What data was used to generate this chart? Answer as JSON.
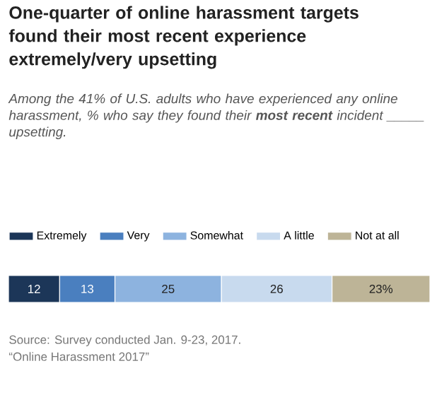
{
  "chart_data": {
    "type": "bar",
    "orientation": "horizontal",
    "stacked": true,
    "legend": "top",
    "title": "One-quarter of online harassment targets found their most recent experience extremely/very upsetting",
    "subtitle": "Among the 41% of U.S. adults who have experienced any online harassment, % who say they found their **most recent** incident _____ upsetting.",
    "categories": [
      null
    ],
    "series": [
      {
        "name": "Extremely",
        "color": "#1c3658",
        "values": [
          12
        ],
        "value_labels": [
          "12"
        ]
      },
      {
        "name": "Very",
        "color": "#4a7fbf",
        "values": [
          13
        ],
        "value_labels": [
          "13"
        ]
      },
      {
        "name": "Somewhat",
        "color": "#8db3df",
        "values": [
          25
        ],
        "value_labels": [
          "25"
        ]
      },
      {
        "name": "A little",
        "color": "#c8daee",
        "values": [
          26
        ],
        "value_labels": [
          "26"
        ]
      },
      {
        "name": "Not at all",
        "color": "#bdb497",
        "values": [
          23
        ],
        "value_labels": [
          "23%"
        ]
      }
    ],
    "annotations": [
      "Source: Survey conducted Jan. 9-23, 2017.",
      "“Online Harassment 2017”"
    ]
  }
}
